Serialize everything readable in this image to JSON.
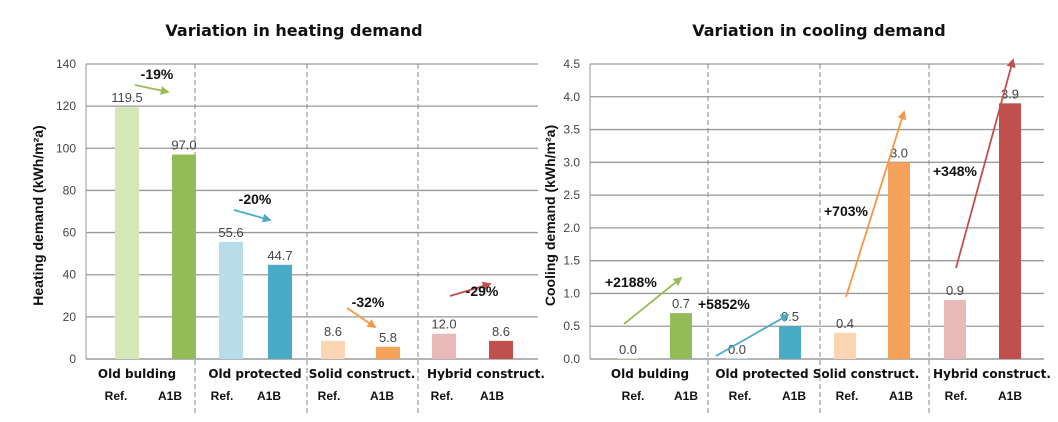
{
  "chart_data": [
    {
      "type": "bar",
      "title": "Variation in heating demand",
      "ylabel": "Heating demand   (kWh/m²a)",
      "ylim": [
        0,
        140
      ],
      "yticks": [
        "0",
        "20",
        "40",
        "60",
        "80",
        "100",
        "120",
        "140"
      ],
      "ytick_values": [
        0,
        20,
        40,
        60,
        80,
        100,
        120,
        140
      ],
      "grid": "horizontal",
      "groups": [
        "Old bulding",
        "Old protected",
        "Solid construct.",
        "Hybrid construct."
      ],
      "sub_categories": [
        "Ref.",
        "A1B"
      ],
      "series": [
        {
          "values": [
            119.5,
            55.6,
            8.6,
            12.0
          ],
          "labels": [
            "119.5",
            "55.6",
            "8.6",
            "12.0"
          ],
          "colors": [
            "#d5e6b7",
            "#b7dcea",
            "#fbd5b4",
            "#e8b9b9"
          ]
        },
        {
          "values": [
            97.0,
            44.7,
            5.8,
            8.6
          ],
          "labels": [
            "97.0",
            "44.7",
            "5.8",
            "8.6"
          ],
          "colors": [
            "#93bb57",
            "#4aabc7",
            "#f5a25b",
            "#c0504d"
          ]
        }
      ],
      "changes": [
        "-19%",
        "-20%",
        "-32%",
        "-29%"
      ],
      "change_colors": [
        "#9bbb59",
        "#4bacc6",
        "#f79646",
        "#c0504d"
      ]
    },
    {
      "type": "bar",
      "title": "Variation in cooling demand",
      "ylabel": "Cooling demand   (kWh/m²a)",
      "ylim": [
        0,
        4.5
      ],
      "yticks": [
        "0.0",
        "0.5",
        "1.0",
        "1.5",
        "2.0",
        "2.5",
        "3.0",
        "3.5",
        "4.0",
        "4.5"
      ],
      "ytick_values": [
        0,
        0.5,
        1.0,
        1.5,
        2.0,
        2.5,
        3.0,
        3.5,
        4.0,
        4.5
      ],
      "grid": "horizontal",
      "groups": [
        "Old bulding",
        "Old protected",
        "Solid construct.",
        "Hybrid construct."
      ],
      "sub_categories": [
        "Ref.",
        "A1B"
      ],
      "series": [
        {
          "values": [
            0.0,
            0.0,
            0.4,
            0.9
          ],
          "labels": [
            "0.0",
            "0.0",
            "0.4",
            "0.9"
          ],
          "colors": [
            "#d5e6b7",
            "#b7dcea",
            "#fbd5b4",
            "#e8b9b9"
          ]
        },
        {
          "values": [
            0.7,
            0.5,
            3.0,
            3.9
          ],
          "labels": [
            "0.7",
            "0.5",
            "3.0",
            "3.9"
          ],
          "colors": [
            "#93bb57",
            "#4aabc7",
            "#f5a25b",
            "#c0504d"
          ]
        }
      ],
      "changes": [
        "+2188%",
        "+5852%",
        "+703%",
        "+348%"
      ],
      "change_colors": [
        "#9bbb59",
        "#4bacc6",
        "#f79646",
        "#c0504d"
      ]
    }
  ]
}
